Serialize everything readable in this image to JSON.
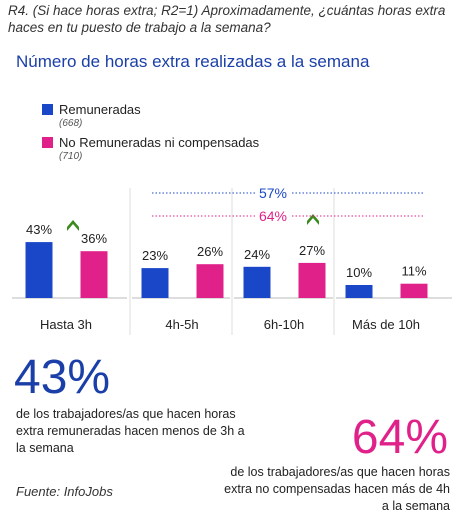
{
  "question": "R4. (Si hace horas extra; R2=1) Aproximadamente, ¿cuántas horas extra haces en tu puesto de trabajo a la semana?",
  "colors": {
    "blue": "#1a47c8",
    "pink": "#e0218a",
    "title": "#1a3fa8",
    "arrow": "#3b8a1e"
  },
  "chart_data": {
    "type": "bar",
    "title": "Número de horas extra realizadas a la semana",
    "categories": [
      "Hasta 3h",
      "4h-5h",
      "6h-10h",
      "Más de 10h"
    ],
    "series": [
      {
        "name": "Remuneradas",
        "n": "(668)",
        "values": [
          43,
          23,
          24,
          10
        ],
        "labels": [
          "43%",
          "23%",
          "24%",
          "10%"
        ]
      },
      {
        "name": "No Remuneradas ni compensadas",
        "n": "(710)",
        "values": [
          36,
          26,
          27,
          11
        ],
        "labels": [
          "36%",
          "26%",
          "27%",
          "11%"
        ]
      }
    ],
    "annotations": [
      {
        "text": "57%",
        "series": "Remuneradas",
        "span": [
          "4h-5h",
          "Más de 10h"
        ]
      },
      {
        "text": "64%",
        "series": "No Remuneradas ni compensadas",
        "span": [
          "4h-5h",
          "Más de 10h"
        ]
      }
    ],
    "highlights": [
      "43%",
      "64%"
    ],
    "legend": "top-left",
    "grid": false
  },
  "callouts": {
    "left_value": "43%",
    "left_text": "de los trabajadores/as que hacen horas extra remuneradas hacen menos de 3h a la semana",
    "right_value": "64%",
    "right_text": "de los trabajadores/as que hacen horas extra no compensadas hacen más de 4h a la semana"
  },
  "source": "Fuente: InfoJobs"
}
